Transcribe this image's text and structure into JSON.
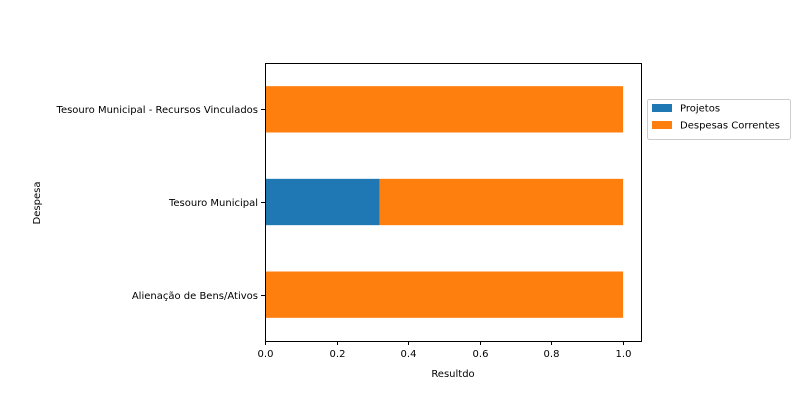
{
  "chart_data": {
    "type": "bar",
    "orientation": "horizontal",
    "stacked": true,
    "categories": [
      "Alienação de Bens/Ativos",
      "Tesouro Municipal",
      "Tesouro Municipal - Recursos Vinculados"
    ],
    "series": [
      {
        "name": "Projetos",
        "color": "#1f77b4",
        "values": [
          0.0,
          0.32,
          0.0
        ]
      },
      {
        "name": "Despesas Correntes",
        "color": "#ff7f0e",
        "values": [
          1.0,
          0.68,
          1.0
        ]
      }
    ],
    "xlabel": "Resultdo",
    "ylabel": "Despesa",
    "xlim": [
      0,
      1.05
    ],
    "xticks": [
      "0.0",
      "0.2",
      "0.4",
      "0.6",
      "0.8",
      "1.0"
    ],
    "xtick_values": [
      0,
      0.2,
      0.4,
      0.6,
      0.8,
      1.0
    ],
    "grid": false,
    "legend_position": "outside-right-top"
  }
}
